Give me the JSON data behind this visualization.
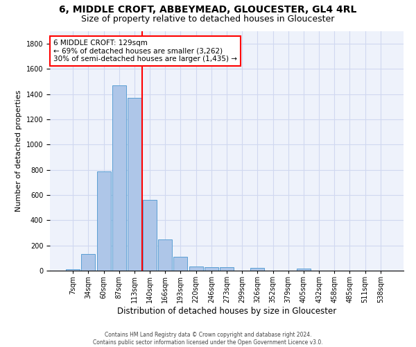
{
  "title": "6, MIDDLE CROFT, ABBEYMEAD, GLOUCESTER, GL4 4RL",
  "subtitle": "Size of property relative to detached houses in Gloucester",
  "xlabel": "Distribution of detached houses by size in Gloucester",
  "ylabel": "Number of detached properties",
  "footer_line1": "Contains HM Land Registry data © Crown copyright and database right 2024.",
  "footer_line2": "Contains public sector information licensed under the Open Government Licence v3.0.",
  "bar_labels": [
    "7sqm",
    "34sqm",
    "60sqm",
    "87sqm",
    "113sqm",
    "140sqm",
    "166sqm",
    "193sqm",
    "220sqm",
    "246sqm",
    "273sqm",
    "299sqm",
    "326sqm",
    "352sqm",
    "379sqm",
    "405sqm",
    "432sqm",
    "458sqm",
    "485sqm",
    "511sqm",
    "538sqm"
  ],
  "bar_values": [
    10,
    130,
    790,
    1470,
    1370,
    560,
    250,
    110,
    35,
    30,
    25,
    0,
    20,
    0,
    0,
    15,
    0,
    0,
    0,
    0,
    0
  ],
  "bar_color": "#aec6e8",
  "bar_edge_color": "#5a9fd4",
  "vline_x": 4.5,
  "vline_color": "red",
  "annotation_box_text": "6 MIDDLE CROFT: 129sqm\n← 69% of detached houses are smaller (3,262)\n30% of semi-detached houses are larger (1,435) →",
  "annotation_box_color": "red",
  "ylim": [
    0,
    1900
  ],
  "yticks": [
    0,
    200,
    400,
    600,
    800,
    1000,
    1200,
    1400,
    1600,
    1800
  ],
  "background_color": "#eef2fb",
  "grid_color": "#d0d8f0",
  "title_fontsize": 10,
  "subtitle_fontsize": 9,
  "ylabel_fontsize": 8,
  "xlabel_fontsize": 8.5,
  "tick_fontsize": 7,
  "annotation_fontsize": 7.5,
  "footer_fontsize": 5.5
}
